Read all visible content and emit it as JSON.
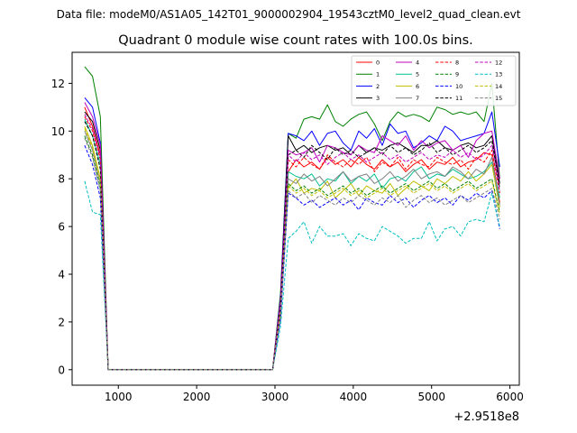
{
  "chart_data": {
    "type": "line",
    "suptitle": "Data file: modeM0/AS1A05_142T01_9000002904_19543cztM0_level2_quad_clean.evt",
    "title": "Quadrant 0 module wise count rates with 100.0s bins.",
    "xlabel": "",
    "ylabel": "",
    "x_offset_label": "+2.9518e8",
    "xlim": [
      410,
      6120
    ],
    "ylim": [
      -0.65,
      13.3
    ],
    "x_ticks": [
      1000,
      2000,
      3000,
      4000,
      5000,
      6000
    ],
    "y_ticks": [
      0,
      2,
      4,
      6,
      8,
      10,
      12
    ],
    "legend_position": "upper right",
    "x": [
      570,
      670,
      770,
      870,
      970,
      1070,
      1170,
      1270,
      1370,
      1470,
      1570,
      1670,
      1770,
      1870,
      1970,
      2070,
      2170,
      2270,
      2370,
      2470,
      2570,
      2670,
      2770,
      2870,
      2970,
      3070,
      3170,
      3270,
      3370,
      3470,
      3570,
      3670,
      3770,
      3870,
      3970,
      4070,
      4170,
      4270,
      4370,
      4470,
      4570,
      4670,
      4770,
      4870,
      4970,
      5070,
      5170,
      5270,
      5370,
      5470,
      5570,
      5670,
      5770,
      5870
    ],
    "series": [
      {
        "name": "0",
        "color": "#ff0000",
        "dash": "solid",
        "values": [
          11.0,
          10.2,
          9.0,
          0.0,
          0.0,
          0.0,
          0.0,
          0.0,
          0.0,
          0.0,
          0.0,
          0.0,
          0.0,
          0.0,
          0.0,
          0.0,
          0.0,
          0.0,
          0.0,
          0.0,
          0.0,
          0.0,
          0.0,
          0.0,
          0.0,
          2.5,
          8.3,
          8.8,
          8.5,
          8.7,
          8.4,
          8.9,
          8.6,
          8.8,
          8.5,
          8.9,
          8.6,
          8.4,
          8.8,
          8.5,
          8.7,
          8.3,
          8.6,
          8.8,
          8.4,
          8.7,
          8.6,
          8.9,
          8.5,
          8.7,
          8.8,
          9.1,
          9.0,
          7.0
        ]
      },
      {
        "name": "1",
        "color": "#008000",
        "dash": "solid",
        "values": [
          12.7,
          12.3,
          10.6,
          0.0,
          0.0,
          0.0,
          0.0,
          0.0,
          0.0,
          0.0,
          0.0,
          0.0,
          0.0,
          0.0,
          0.0,
          0.0,
          0.0,
          0.0,
          0.0,
          0.0,
          0.0,
          0.0,
          0.0,
          0.0,
          0.0,
          3.2,
          9.9,
          9.7,
          10.5,
          10.6,
          10.5,
          11.1,
          10.4,
          10.2,
          10.5,
          10.7,
          10.8,
          10.3,
          9.6,
          10.4,
          10.8,
          10.6,
          10.7,
          10.6,
          10.4,
          11.0,
          10.9,
          10.7,
          10.8,
          10.7,
          10.8,
          10.4,
          12.0,
          8.0
        ]
      },
      {
        "name": "2",
        "color": "#0000ff",
        "dash": "solid",
        "values": [
          11.4,
          11.0,
          9.5,
          0.0,
          0.0,
          0.0,
          0.0,
          0.0,
          0.0,
          0.0,
          0.0,
          0.0,
          0.0,
          0.0,
          0.0,
          0.0,
          0.0,
          0.0,
          0.0,
          0.0,
          0.0,
          0.0,
          0.0,
          0.0,
          0.0,
          3.0,
          9.9,
          9.8,
          9.6,
          10.0,
          9.4,
          9.9,
          10.0,
          9.5,
          9.2,
          10.0,
          9.7,
          10.1,
          9.4,
          10.3,
          9.9,
          10.0,
          9.3,
          9.5,
          9.8,
          9.6,
          10.2,
          10.0,
          9.6,
          9.7,
          9.8,
          9.9,
          10.8,
          8.5
        ]
      },
      {
        "name": "3",
        "color": "#000000",
        "dash": "solid",
        "values": [
          10.8,
          10.4,
          9.2,
          0.0,
          0.0,
          0.0,
          0.0,
          0.0,
          0.0,
          0.0,
          0.0,
          0.0,
          0.0,
          0.0,
          0.0,
          0.0,
          0.0,
          0.0,
          0.0,
          0.0,
          0.0,
          0.0,
          0.0,
          0.0,
          0.0,
          2.8,
          9.8,
          9.2,
          9.4,
          9.1,
          9.3,
          9.4,
          9.2,
          9.3,
          9.0,
          9.4,
          9.1,
          9.3,
          9.2,
          9.4,
          9.5,
          9.3,
          9.1,
          9.4,
          9.4,
          9.6,
          9.3,
          9.2,
          9.4,
          9.5,
          9.3,
          9.4,
          9.8,
          7.8
        ]
      },
      {
        "name": "4",
        "color": "#bf00bf",
        "dash": "solid",
        "values": [
          11.2,
          10.6,
          9.4,
          0.0,
          0.0,
          0.0,
          0.0,
          0.0,
          0.0,
          0.0,
          0.0,
          0.0,
          0.0,
          0.0,
          0.0,
          0.0,
          0.0,
          0.0,
          0.0,
          0.0,
          0.0,
          0.0,
          0.0,
          0.0,
          0.0,
          2.9,
          9.2,
          9.0,
          9.1,
          9.3,
          8.7,
          9.4,
          9.3,
          9.1,
          9.0,
          9.4,
          9.2,
          9.1,
          9.8,
          9.6,
          9.4,
          9.8,
          9.2,
          9.6,
          9.3,
          9.5,
          9.6,
          9.2,
          9.4,
          8.9,
          9.6,
          9.9,
          10.0,
          8.0
        ]
      },
      {
        "name": "5",
        "color": "#00bf8f",
        "dash": "solid",
        "values": [
          10.5,
          9.8,
          8.6,
          0.0,
          0.0,
          0.0,
          0.0,
          0.0,
          0.0,
          0.0,
          0.0,
          0.0,
          0.0,
          0.0,
          0.0,
          0.0,
          0.0,
          0.0,
          0.0,
          0.0,
          0.0,
          0.0,
          0.0,
          0.0,
          0.0,
          2.6,
          8.3,
          8.1,
          8.0,
          8.2,
          7.7,
          8.0,
          7.9,
          8.3,
          7.8,
          8.1,
          7.9,
          8.2,
          7.6,
          8.0,
          8.1,
          7.9,
          8.3,
          8.5,
          8.0,
          8.2,
          8.1,
          8.4,
          8.2,
          8.0,
          8.1,
          8.3,
          8.7,
          7.2
        ]
      },
      {
        "name": "6",
        "color": "#bfbf00",
        "dash": "solid",
        "values": [
          10.2,
          9.4,
          8.0,
          0.0,
          0.0,
          0.0,
          0.0,
          0.0,
          0.0,
          0.0,
          0.0,
          0.0,
          0.0,
          0.0,
          0.0,
          0.0,
          0.0,
          0.0,
          0.0,
          0.0,
          0.0,
          0.0,
          0.0,
          0.0,
          0.0,
          2.4,
          7.6,
          8.0,
          7.4,
          7.6,
          7.5,
          7.9,
          7.2,
          7.5,
          7.8,
          7.3,
          7.7,
          7.5,
          7.4,
          7.8,
          7.3,
          7.6,
          7.9,
          7.7,
          7.5,
          8.0,
          7.8,
          8.1,
          7.9,
          8.3,
          7.9,
          8.2,
          8.6,
          6.8
        ]
      },
      {
        "name": "7",
        "color": "#808080",
        "dash": "solid",
        "values": [
          10.0,
          9.2,
          7.8,
          0.0,
          0.0,
          0.0,
          0.0,
          0.0,
          0.0,
          0.0,
          0.0,
          0.0,
          0.0,
          0.0,
          0.0,
          0.0,
          0.0,
          0.0,
          0.0,
          0.0,
          0.0,
          0.0,
          0.0,
          0.0,
          0.0,
          2.3,
          8.0,
          7.8,
          8.2,
          7.9,
          8.1,
          7.7,
          8.0,
          8.3,
          7.9,
          8.1,
          8.2,
          7.8,
          8.0,
          8.3,
          7.9,
          8.1,
          8.4,
          8.0,
          8.2,
          8.3,
          8.1,
          8.5,
          8.3,
          8.0,
          8.4,
          8.2,
          8.9,
          6.9
        ]
      },
      {
        "name": "8",
        "color": "#ff0000",
        "dash": "dashed",
        "values": [
          10.6,
          10.0,
          8.8,
          0.0,
          0.0,
          0.0,
          0.0,
          0.0,
          0.0,
          0.0,
          0.0,
          0.0,
          0.0,
          0.0,
          0.0,
          0.0,
          0.0,
          0.0,
          0.0,
          0.0,
          0.0,
          0.0,
          0.0,
          0.0,
          0.0,
          2.7,
          8.8,
          8.5,
          8.9,
          8.6,
          8.4,
          9.0,
          8.7,
          8.5,
          8.8,
          8.6,
          8.9,
          8.3,
          8.7,
          8.5,
          8.9,
          8.4,
          8.8,
          8.6,
          8.5,
          8.9,
          8.7,
          8.6,
          8.8,
          8.4,
          8.9,
          8.7,
          9.2,
          7.4
        ]
      },
      {
        "name": "9",
        "color": "#008000",
        "dash": "dashed",
        "values": [
          9.8,
          9.0,
          7.6,
          0.0,
          0.0,
          0.0,
          0.0,
          0.0,
          0.0,
          0.0,
          0.0,
          0.0,
          0.0,
          0.0,
          0.0,
          0.0,
          0.0,
          0.0,
          0.0,
          0.0,
          0.0,
          0.0,
          0.0,
          0.0,
          0.0,
          2.2,
          7.8,
          7.5,
          7.7,
          7.4,
          7.6,
          7.3,
          7.5,
          7.7,
          7.4,
          7.6,
          7.3,
          7.5,
          7.7,
          7.4,
          7.6,
          7.8,
          7.5,
          7.7,
          7.9,
          7.6,
          7.8,
          7.5,
          7.7,
          7.9,
          7.6,
          7.8,
          8.0,
          6.6
        ]
      },
      {
        "name": "10",
        "color": "#0000ff",
        "dash": "dashed",
        "values": [
          9.4,
          8.6,
          7.2,
          0.0,
          0.0,
          0.0,
          0.0,
          0.0,
          0.0,
          0.0,
          0.0,
          0.0,
          0.0,
          0.0,
          0.0,
          0.0,
          0.0,
          0.0,
          0.0,
          0.0,
          0.0,
          0.0,
          0.0,
          0.0,
          0.0,
          2.1,
          7.4,
          7.2,
          6.9,
          7.1,
          6.8,
          7.0,
          7.2,
          6.9,
          7.1,
          6.7,
          7.2,
          7.0,
          6.9,
          7.3,
          7.0,
          7.2,
          6.8,
          7.1,
          7.3,
          7.0,
          7.2,
          6.9,
          7.3,
          7.1,
          7.4,
          7.2,
          7.5,
          5.9
        ]
      },
      {
        "name": "11",
        "color": "#000000",
        "dash": "dashed",
        "values": [
          10.4,
          9.8,
          8.4,
          0.0,
          0.0,
          0.0,
          0.0,
          0.0,
          0.0,
          0.0,
          0.0,
          0.0,
          0.0,
          0.0,
          0.0,
          0.0,
          0.0,
          0.0,
          0.0,
          0.0,
          0.0,
          0.0,
          0.0,
          0.0,
          0.0,
          2.7,
          9.0,
          9.2,
          8.9,
          9.4,
          9.1,
          8.8,
          9.3,
          9.0,
          9.2,
          8.9,
          9.1,
          9.3,
          9.0,
          9.4,
          9.1,
          9.3,
          9.0,
          9.2,
          9.5,
          9.1,
          9.3,
          9.0,
          9.2,
          9.4,
          9.1,
          9.3,
          9.6,
          7.6
        ]
      },
      {
        "name": "12",
        "color": "#bf00bf",
        "dash": "dashed",
        "values": [
          10.7,
          10.1,
          8.9,
          0.0,
          0.0,
          0.0,
          0.0,
          0.0,
          0.0,
          0.0,
          0.0,
          0.0,
          0.0,
          0.0,
          0.0,
          0.0,
          0.0,
          0.0,
          0.0,
          0.0,
          0.0,
          0.0,
          0.0,
          0.0,
          0.0,
          2.8,
          9.0,
          8.7,
          9.1,
          8.8,
          9.0,
          8.6,
          8.9,
          9.1,
          8.8,
          9.0,
          8.7,
          8.9,
          9.1,
          8.8,
          9.0,
          8.7,
          8.9,
          9.1,
          8.8,
          9.0,
          8.9,
          9.2,
          8.9,
          9.1,
          8.8,
          9.0,
          9.4,
          7.5
        ]
      },
      {
        "name": "13",
        "color": "#00bfbf",
        "dash": "dashed",
        "values": [
          7.9,
          6.6,
          6.5,
          0.0,
          0.0,
          0.0,
          0.0,
          0.0,
          0.0,
          0.0,
          0.0,
          0.0,
          0.0,
          0.0,
          0.0,
          0.0,
          0.0,
          0.0,
          0.0,
          0.0,
          0.0,
          0.0,
          0.0,
          0.0,
          0.0,
          1.8,
          5.5,
          5.8,
          6.2,
          5.3,
          6.0,
          5.6,
          5.6,
          5.7,
          5.2,
          5.7,
          5.5,
          5.4,
          6.0,
          5.8,
          5.6,
          5.3,
          5.5,
          5.5,
          6.2,
          5.4,
          5.9,
          6.0,
          5.6,
          6.2,
          6.3,
          6.2,
          7.4,
          6.0
        ]
      },
      {
        "name": "14",
        "color": "#bfbf00",
        "dash": "dashed",
        "values": [
          10.1,
          9.3,
          7.9,
          0.0,
          0.0,
          0.0,
          0.0,
          0.0,
          0.0,
          0.0,
          0.0,
          0.0,
          0.0,
          0.0,
          0.0,
          0.0,
          0.0,
          0.0,
          0.0,
          0.0,
          0.0,
          0.0,
          0.0,
          0.0,
          0.0,
          2.4,
          7.7,
          7.4,
          7.6,
          7.3,
          7.5,
          7.2,
          7.4,
          7.6,
          7.3,
          7.5,
          7.2,
          7.4,
          7.6,
          7.3,
          7.5,
          7.7,
          7.4,
          7.6,
          7.8,
          7.5,
          7.7,
          7.4,
          7.6,
          7.8,
          7.5,
          7.7,
          7.9,
          6.5
        ]
      },
      {
        "name": "15",
        "color": "#808080",
        "dash": "dashed",
        "values": [
          9.7,
          8.9,
          7.5,
          0.0,
          0.0,
          0.0,
          0.0,
          0.0,
          0.0,
          0.0,
          0.0,
          0.0,
          0.0,
          0.0,
          0.0,
          0.0,
          0.0,
          0.0,
          0.0,
          0.0,
          0.0,
          0.0,
          0.0,
          0.0,
          0.0,
          2.2,
          7.5,
          7.2,
          7.4,
          7.0,
          7.3,
          7.1,
          6.9,
          7.2,
          7.0,
          7.3,
          7.1,
          6.9,
          7.2,
          7.0,
          7.3,
          6.8,
          7.1,
          7.3,
          7.0,
          7.2,
          6.9,
          7.1,
          7.3,
          7.0,
          7.2,
          7.4,
          7.6,
          6.3
        ]
      }
    ]
  }
}
